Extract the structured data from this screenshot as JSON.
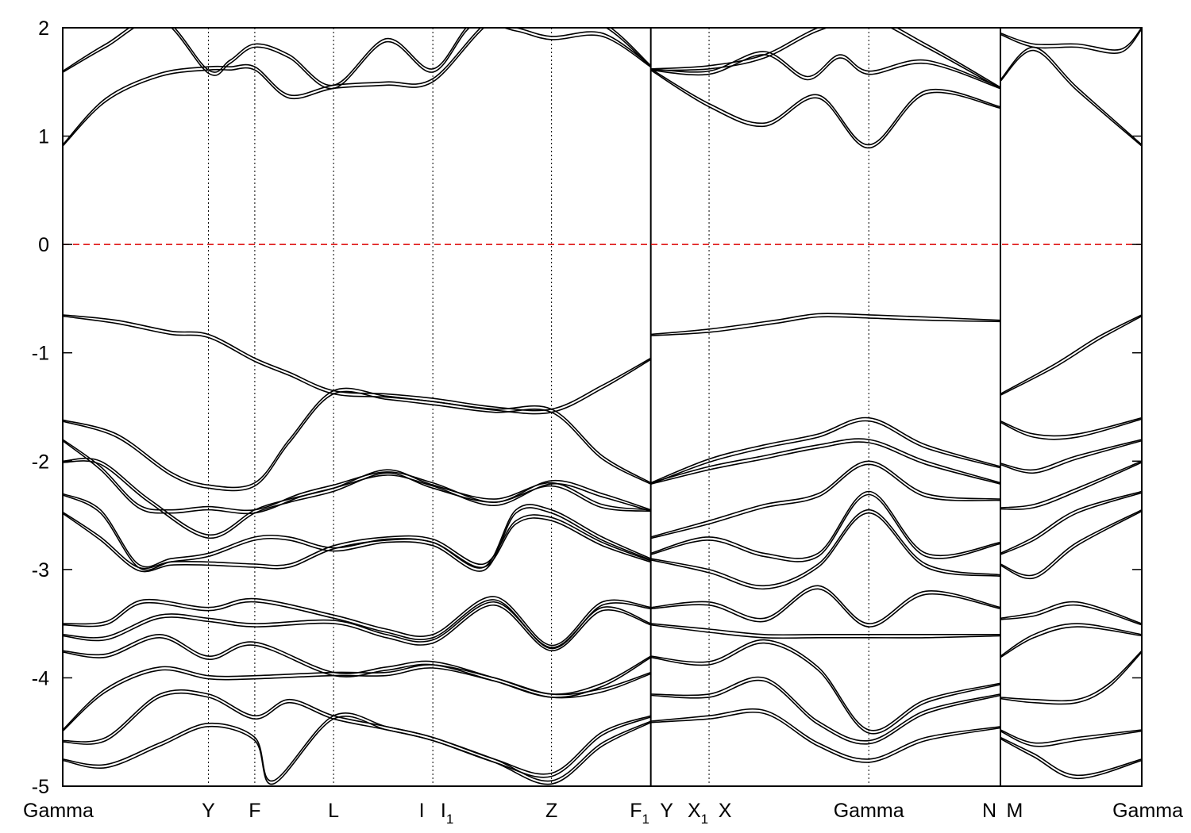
{
  "chart_data": {
    "type": "line",
    "title": "",
    "xlabel": "",
    "ylabel": "",
    "ylim": [
      -5,
      2
    ],
    "yticks": [
      -5,
      -4,
      -3,
      -2,
      -1,
      0,
      1,
      2
    ],
    "ytick_labels": [
      "-5",
      "-4",
      "-3",
      "-2",
      "-1",
      "0",
      "1",
      "2"
    ],
    "grid": false,
    "k_points": [
      {
        "name": "Gamma",
        "sub": "",
        "x": 0.0,
        "line": false
      },
      {
        "name": "Y",
        "sub": "",
        "x": 1.35,
        "line": true
      },
      {
        "name": "F",
        "sub": "",
        "x": 1.78,
        "line": true
      },
      {
        "name": "L",
        "sub": "",
        "x": 2.51,
        "line": true
      },
      {
        "name": "I",
        "sub": "",
        "x": 3.43,
        "line": true
      },
      {
        "name": "I",
        "sub": "1",
        "x": 3.43,
        "line": false
      },
      {
        "name": "Z",
        "sub": "",
        "x": 4.53,
        "line": true
      },
      {
        "name": "F",
        "sub": "1",
        "x": 5.45,
        "line": true
      },
      {
        "name": "Y",
        "sub": "",
        "x": 5.45,
        "line": false
      },
      {
        "name": "X",
        "sub": "1",
        "x": 5.99,
        "line": true
      },
      {
        "name": "X",
        "sub": "",
        "x": 5.99,
        "line": false
      },
      {
        "name": "Gamma",
        "sub": "",
        "x": 7.47,
        "line": true
      },
      {
        "name": "N",
        "sub": "",
        "x": 8.69,
        "line": true
      },
      {
        "name": "M",
        "sub": "",
        "x": 8.69,
        "line": false
      },
      {
        "name": "Gamma",
        "sub": "",
        "x": 10.0,
        "line": false
      }
    ],
    "fermi_level": {
      "value": 0,
      "color": "#dd0000"
    },
    "band_color": "#000000",
    "bands": [
      {
        "segment": "Gamma-Y-F-L-I-Z-F1",
        "x": [
          0,
          0.4,
          0.9,
          1.35,
          1.55,
          1.78,
          2.1,
          2.51,
          3.0,
          3.43,
          4.0,
          4.53,
          5.0,
          5.45
        ],
        "y": [
          0.92,
          1.35,
          1.58,
          1.64,
          1.64,
          1.64,
          1.38,
          1.47,
          1.5,
          1.53,
          2.1,
          2.1,
          2.05,
          1.65
        ]
      },
      {
        "segment": "Gamma-Y-F-L-I-Z-F1",
        "x": [
          0,
          0.4,
          0.9,
          1.35,
          1.55,
          1.78,
          2.1,
          2.51,
          3.0,
          3.43,
          3.8,
          4.2,
          4.53,
          5.0,
          5.45
        ],
        "y": [
          1.6,
          1.85,
          2.1,
          1.61,
          1.7,
          1.85,
          1.75,
          1.47,
          1.9,
          1.62,
          2.05,
          2.0,
          1.92,
          1.95,
          1.65
        ]
      },
      {
        "segment": "Gamma-Y-F-L-I-Z-F1",
        "x": [
          0,
          0.5,
          1.0,
          1.35,
          1.78,
          2.1,
          2.51,
          3.0,
          3.43,
          4.0,
          4.53,
          5.0,
          5.45
        ],
        "y": [
          -0.65,
          -0.7,
          -0.8,
          -0.83,
          -1.05,
          -1.18,
          -1.35,
          -1.38,
          -1.42,
          -1.5,
          -1.52,
          -1.3,
          -1.05
        ]
      },
      {
        "segment": "Gamma-Y-F-L-I-Z-F1",
        "x": [
          0,
          0.5,
          1.0,
          1.35,
          1.78,
          2.1,
          2.51,
          3.0,
          3.43,
          4.0,
          4.53,
          5.0,
          5.45
        ],
        "y": [
          -1.62,
          -1.75,
          -2.1,
          -2.22,
          -2.2,
          -1.8,
          -1.35,
          -1.4,
          -1.45,
          -1.52,
          -1.52,
          -1.95,
          -2.2
        ]
      },
      {
        "segment": "Gamma-Y-F-L-I-Z-F1",
        "x": [
          0,
          0.35,
          0.7,
          1.0,
          1.35,
          1.78,
          2.2,
          2.51,
          3.0,
          3.43,
          4.0,
          4.53,
          5.0,
          5.45
        ],
        "y": [
          -1.8,
          -2.05,
          -2.4,
          -2.45,
          -2.42,
          -2.45,
          -2.3,
          -2.22,
          -2.1,
          -2.2,
          -2.38,
          -2.18,
          -2.3,
          -2.45
        ]
      },
      {
        "segment": "Gamma-Y-F-L-I-Z-F1",
        "x": [
          0,
          0.35,
          0.8,
          1.35,
          1.78,
          2.1,
          2.51,
          3.0,
          3.43,
          4.0,
          4.53,
          5.0,
          5.45
        ],
        "y": [
          -2.0,
          -2.0,
          -2.35,
          -2.68,
          -2.45,
          -2.35,
          -2.25,
          -2.08,
          -2.22,
          -2.35,
          -2.2,
          -2.4,
          -2.45
        ]
      },
      {
        "segment": "Gamma-Y-F-L-I-Z-F1",
        "x": [
          0,
          0.35,
          0.7,
          1.0,
          1.35,
          1.78,
          2.1,
          2.51,
          3.0,
          3.43,
          3.9,
          4.2,
          4.53,
          5.0,
          5.45
        ],
        "y": [
          -2.3,
          -2.45,
          -2.95,
          -2.9,
          -2.85,
          -2.7,
          -2.7,
          -2.8,
          -2.72,
          -2.75,
          -2.98,
          -2.45,
          -2.45,
          -2.7,
          -2.9
        ]
      },
      {
        "segment": "Gamma-Y-F-L-I-Z-F1",
        "x": [
          0,
          0.35,
          0.7,
          1.0,
          1.35,
          1.78,
          2.1,
          2.51,
          3.0,
          3.43,
          3.9,
          4.2,
          4.53,
          5.0,
          5.45
        ],
        "y": [
          -2.47,
          -2.7,
          -2.98,
          -2.93,
          -2.93,
          -2.95,
          -2.95,
          -2.78,
          -2.7,
          -2.72,
          -2.95,
          -2.55,
          -2.52,
          -2.75,
          -2.92
        ]
      },
      {
        "segment": "Gamma-Y-F-L-I-Z-F1",
        "x": [
          0,
          0.4,
          0.75,
          1.35,
          1.78,
          2.51,
          3.0,
          3.43,
          4.0,
          4.53,
          5.0,
          5.45
        ],
        "y": [
          -3.5,
          -3.48,
          -3.28,
          -3.35,
          -3.27,
          -3.42,
          -3.55,
          -3.6,
          -3.25,
          -3.7,
          -3.3,
          -3.35
        ]
      },
      {
        "segment": "Gamma-Y-F-L-I-Z-F1",
        "x": [
          0,
          0.4,
          0.9,
          1.35,
          1.78,
          2.51,
          3.0,
          3.43,
          4.0,
          4.53,
          5.0,
          5.45
        ],
        "y": [
          -3.6,
          -3.62,
          -3.42,
          -3.45,
          -3.5,
          -3.47,
          -3.6,
          -3.65,
          -3.3,
          -3.72,
          -3.35,
          -3.5
        ]
      },
      {
        "segment": "Gamma-Y-F-L-I-Z-F1",
        "x": [
          0,
          0.4,
          0.9,
          1.35,
          1.78,
          2.51,
          3.0,
          3.43,
          4.0,
          4.53,
          5.0,
          5.45
        ],
        "y": [
          -3.75,
          -3.78,
          -3.6,
          -3.8,
          -3.67,
          -3.95,
          -3.9,
          -3.85,
          -4.0,
          -4.15,
          -4.05,
          -3.8
        ]
      },
      {
        "segment": "Gamma-Y-F-L-I-Z-F1",
        "x": [
          0,
          0.4,
          0.9,
          1.35,
          1.78,
          2.51,
          3.0,
          3.43,
          4.0,
          4.53,
          5.0,
          5.45
        ],
        "y": [
          -4.48,
          -4.1,
          -3.9,
          -3.98,
          -3.98,
          -3.95,
          -3.95,
          -3.88,
          -4.0,
          -4.15,
          -4.1,
          -3.95
        ]
      },
      {
        "segment": "Gamma-Y-F-L-I-Z-F1",
        "x": [
          0,
          0.4,
          0.9,
          1.35,
          1.78,
          2.1,
          2.51,
          3.0,
          3.43,
          4.0,
          4.53,
          5.0,
          5.45
        ],
        "y": [
          -4.58,
          -4.55,
          -4.15,
          -4.15,
          -4.35,
          -4.2,
          -4.35,
          -4.45,
          -4.55,
          -4.75,
          -4.88,
          -4.5,
          -4.35
        ]
      },
      {
        "segment": "Gamma-Y-F-L-I-Z-F1",
        "x": [
          0,
          0.4,
          0.9,
          1.35,
          1.78,
          1.95,
          2.51,
          3.0,
          3.43,
          4.0,
          4.53,
          5.0,
          5.45
        ],
        "y": [
          -4.75,
          -4.8,
          -4.6,
          -4.42,
          -4.55,
          -4.95,
          -4.35,
          -4.45,
          -4.55,
          -4.75,
          -4.95,
          -4.6,
          -4.4
        ]
      },
      {
        "segment": "Y-X1-X-Gamma-N",
        "x": [
          5.45,
          5.99,
          6.5,
          7.0,
          7.47,
          8.0,
          8.69
        ],
        "y": [
          1.62,
          1.65,
          1.75,
          2.0,
          2.1,
          1.85,
          1.45
        ]
      },
      {
        "segment": "Y-X1-X-Gamma-N",
        "x": [
          5.45,
          5.99,
          6.5,
          6.9,
          7.2,
          7.47,
          8.0,
          8.69
        ],
        "y": [
          1.62,
          1.6,
          1.78,
          1.55,
          1.75,
          1.6,
          1.7,
          1.45
        ]
      },
      {
        "segment": "Y-X1-X-Gamma-N",
        "x": [
          5.45,
          5.99,
          6.5,
          7.0,
          7.47,
          8.0,
          8.69
        ],
        "y": [
          1.62,
          1.3,
          1.12,
          1.38,
          0.92,
          1.42,
          1.27
        ]
      },
      {
        "segment": "Y-X1-X-Gamma-N",
        "x": [
          5.45,
          6.0,
          6.6,
          7.0,
          7.47,
          8.0,
          8.69
        ],
        "y": [
          -0.83,
          -0.78,
          -0.7,
          -0.64,
          -0.65,
          -0.67,
          -0.7
        ]
      },
      {
        "segment": "Y-X1-X-Gamma-N",
        "x": [
          5.45,
          5.99,
          6.5,
          7.0,
          7.47,
          8.0,
          8.69
        ],
        "y": [
          -2.2,
          -1.98,
          -1.85,
          -1.75,
          -1.6,
          -1.85,
          -2.05
        ]
      },
      {
        "segment": "Y-X1-X-Gamma-N",
        "x": [
          5.45,
          5.99,
          6.5,
          7.0,
          7.47,
          8.0,
          8.69
        ],
        "y": [
          -2.2,
          -2.05,
          -1.95,
          -1.85,
          -1.8,
          -2.0,
          -2.2
        ]
      },
      {
        "segment": "Y-X1-X-Gamma-N",
        "x": [
          5.45,
          5.99,
          6.5,
          7.0,
          7.47,
          8.0,
          8.69
        ],
        "y": [
          -2.7,
          -2.55,
          -2.4,
          -2.3,
          -2.0,
          -2.3,
          -2.35
        ]
      },
      {
        "segment": "Y-X1-X-Gamma-N",
        "x": [
          5.45,
          5.99,
          6.5,
          7.0,
          7.47,
          8.0,
          8.69
        ],
        "y": [
          -2.85,
          -2.7,
          -2.85,
          -2.85,
          -2.28,
          -2.85,
          -2.75
        ]
      },
      {
        "segment": "Y-X1-X-Gamma-N",
        "x": [
          5.45,
          5.99,
          6.5,
          7.0,
          7.47,
          8.0,
          8.69
        ],
        "y": [
          -2.9,
          -3.0,
          -3.15,
          -2.95,
          -2.45,
          -2.95,
          -3.05
        ]
      },
      {
        "segment": "Y-X1-X-Gamma-N",
        "x": [
          5.45,
          5.99,
          6.5,
          7.0,
          7.47,
          8.0,
          8.69
        ],
        "y": [
          -3.35,
          -3.3,
          -3.45,
          -3.15,
          -3.5,
          -3.2,
          -3.35
        ]
      },
      {
        "segment": "Y-X1-X-Gamma-N",
        "x": [
          5.45,
          5.99,
          6.5,
          7.0,
          7.47,
          8.0,
          8.69
        ],
        "y": [
          -3.5,
          -3.55,
          -3.6,
          -3.6,
          -3.6,
          -3.6,
          -3.6
        ]
      },
      {
        "segment": "Y-X1-X-Gamma-N",
        "x": [
          5.45,
          5.99,
          6.5,
          7.0,
          7.47,
          8.0,
          8.69
        ],
        "y": [
          -3.8,
          -3.85,
          -3.65,
          -3.9,
          -4.48,
          -4.2,
          -4.05
        ]
      },
      {
        "segment": "Y-X1-X-Gamma-N",
        "x": [
          5.45,
          5.99,
          6.5,
          7.0,
          7.47,
          8.0,
          8.69
        ],
        "y": [
          -4.15,
          -4.15,
          -4.0,
          -4.4,
          -4.58,
          -4.3,
          -4.15
        ]
      },
      {
        "segment": "Y-X1-X-Gamma-N",
        "x": [
          5.45,
          5.99,
          6.5,
          7.0,
          7.47,
          8.0,
          8.69
        ],
        "y": [
          -4.4,
          -4.35,
          -4.3,
          -4.6,
          -4.75,
          -4.55,
          -4.45
        ]
      },
      {
        "segment": "M-Gamma",
        "x": [
          8.69,
          9.0,
          9.4,
          10.0
        ],
        "y": [
          1.52,
          1.82,
          1.45,
          0.92
        ]
      },
      {
        "segment": "M-Gamma",
        "x": [
          8.69,
          9.0,
          9.4,
          9.8,
          10.0
        ],
        "y": [
          1.95,
          1.85,
          1.85,
          1.8,
          2.0
        ]
      },
      {
        "segment": "M-Gamma",
        "x": [
          8.69,
          9.2,
          9.6,
          10.0
        ],
        "y": [
          -1.38,
          -1.1,
          -0.85,
          -0.65
        ]
      },
      {
        "segment": "M-Gamma",
        "x": [
          8.69,
          9.0,
          9.4,
          10.0
        ],
        "y": [
          -1.63,
          -1.75,
          -1.75,
          -1.6
        ]
      },
      {
        "segment": "M-Gamma",
        "x": [
          8.69,
          9.0,
          9.4,
          10.0
        ],
        "y": [
          -2.02,
          -2.08,
          -1.95,
          -1.8
        ]
      },
      {
        "segment": "M-Gamma",
        "x": [
          8.69,
          9.0,
          9.4,
          10.0
        ],
        "y": [
          -2.43,
          -2.4,
          -2.25,
          -2.0
        ]
      },
      {
        "segment": "M-Gamma",
        "x": [
          8.69,
          9.0,
          9.4,
          10.0
        ],
        "y": [
          -2.85,
          -2.7,
          -2.45,
          -2.28
        ]
      },
      {
        "segment": "M-Gamma",
        "x": [
          8.69,
          9.0,
          9.4,
          10.0
        ],
        "y": [
          -2.95,
          -3.05,
          -2.75,
          -2.45
        ]
      },
      {
        "segment": "M-Gamma",
        "x": [
          8.69,
          9.0,
          9.4,
          10.0
        ],
        "y": [
          -3.45,
          -3.4,
          -3.3,
          -3.5
        ]
      },
      {
        "segment": "M-Gamma",
        "x": [
          8.69,
          9.0,
          9.4,
          10.0
        ],
        "y": [
          -3.8,
          -3.6,
          -3.5,
          -3.6
        ]
      },
      {
        "segment": "M-Gamma",
        "x": [
          8.69,
          9.0,
          9.4,
          9.7,
          10.0
        ],
        "y": [
          -4.18,
          -4.2,
          -4.2,
          -4.05,
          -3.75
        ]
      },
      {
        "segment": "M-Gamma",
        "x": [
          8.69,
          9.0,
          9.4,
          10.0
        ],
        "y": [
          -4.48,
          -4.6,
          -4.55,
          -4.48
        ]
      },
      {
        "segment": "M-Gamma",
        "x": [
          8.69,
          9.0,
          9.4,
          10.0
        ],
        "y": [
          -4.55,
          -4.7,
          -4.9,
          -4.75
        ]
      }
    ]
  }
}
